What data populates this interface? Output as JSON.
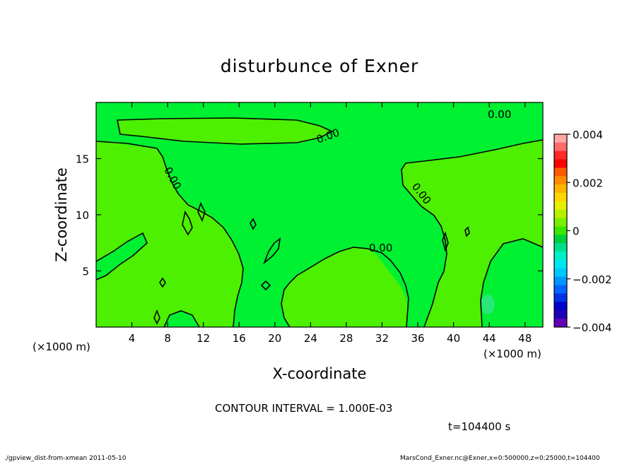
{
  "chart_data": {
    "type": "heatmap",
    "title": "disturbunce of Exner",
    "xlabel": "X-coordinate",
    "ylabel": "Z-coordinate",
    "x_unit_left": "(×1000 m)",
    "x_unit_right": "(×1000 m)",
    "xlim": [
      0,
      50
    ],
    "ylim": [
      0,
      20
    ],
    "x_ticks": [
      4,
      8,
      12,
      16,
      20,
      24,
      28,
      32,
      36,
      40,
      44,
      48
    ],
    "y_ticks": [
      5,
      10,
      15
    ],
    "contour_labels": [
      "0.00",
      "0.00",
      "0.00",
      "0.00",
      "0.00",
      "0.00"
    ],
    "contour_interval_text": "CONTOUR INTERVAL = 1.000E-03",
    "time_text": "t=104400 s",
    "colorbar": {
      "min": -0.004,
      "max": 0.004,
      "tick_values": [
        0.004,
        0.002,
        0,
        -0.002,
        -0.004
      ],
      "tick_labels": [
        "0.004",
        "0.002",
        "0",
        "−0.002",
        "−0.004"
      ],
      "colors": [
        "#ffa6a6",
        "#ff6a6a",
        "#ff2a2a",
        "#ff0000",
        "#ff5a00",
        "#ff8c00",
        "#ffb400",
        "#ffd700",
        "#e6f000",
        "#b4f000",
        "#78f000",
        "#3ce600",
        "#00d040",
        "#00e08c",
        "#00f0c8",
        "#00e6f0",
        "#00c8ff",
        "#0096ff",
        "#0064ff",
        "#0032e6",
        "#0000c8",
        "#1e00b4",
        "#6400b4"
      ]
    },
    "dominant_fill_colors": {
      "near_zero_positive": "#4cf000",
      "near_zero_negative": "#00f032",
      "weak_negative_spot": "#28e87a"
    }
  },
  "footer": {
    "left": "./gpview_dist-from-xmean  2011-05-10",
    "right": "MarsCond_Exner.nc@Exner,x=0:500000,z=0:25000,t=104400"
  }
}
